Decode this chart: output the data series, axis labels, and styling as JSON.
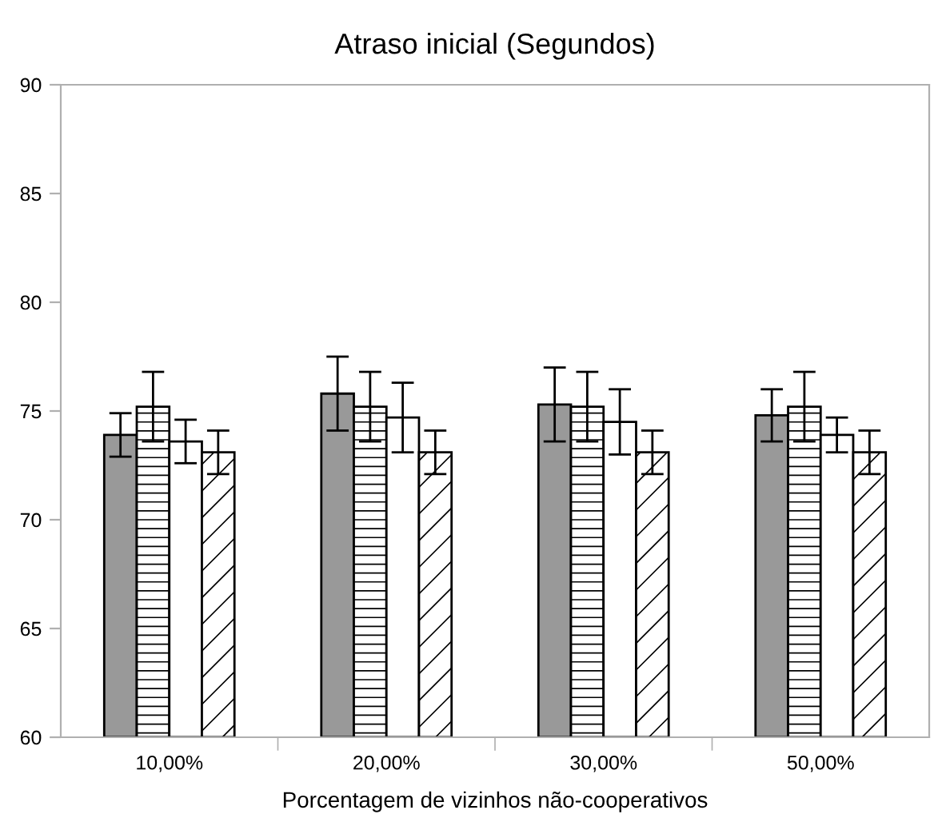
{
  "chart_data": {
    "type": "bar",
    "title": "Atraso inicial (Segundos)",
    "xlabel": "Porcentagem de vizinhos não-cooperativos",
    "categories": [
      "10,00%",
      "20,00%",
      "30,00%",
      "50,00%"
    ],
    "series": [
      {
        "color": "#999999",
        "values": [
          73.9,
          75.8,
          75.3,
          74.8
        ],
        "errors": [
          1.0,
          1.7,
          1.7,
          1.2
        ]
      },
      {
        "color": "#ffffff",
        "values": [
          75.2,
          75.2,
          75.2,
          75.2
        ],
        "errors": [
          1.6,
          1.6,
          1.6,
          1.6
        ]
      },
      {
        "color": "#ffffff",
        "values": [
          73.6,
          74.7,
          74.5,
          73.9
        ],
        "errors": [
          1.0,
          1.6,
          1.5,
          0.8
        ]
      },
      {
        "color": "#ffffff",
        "values": [
          73.1,
          73.1,
          73.1,
          73.1
        ],
        "errors": [
          1.0,
          1.0,
          1.0,
          1.0
        ]
      }
    ],
    "ylim": [
      60,
      90
    ],
    "yticks": [
      60,
      65,
      70,
      75,
      80,
      85,
      90
    ],
    "grid": false,
    "legend": false
  }
}
